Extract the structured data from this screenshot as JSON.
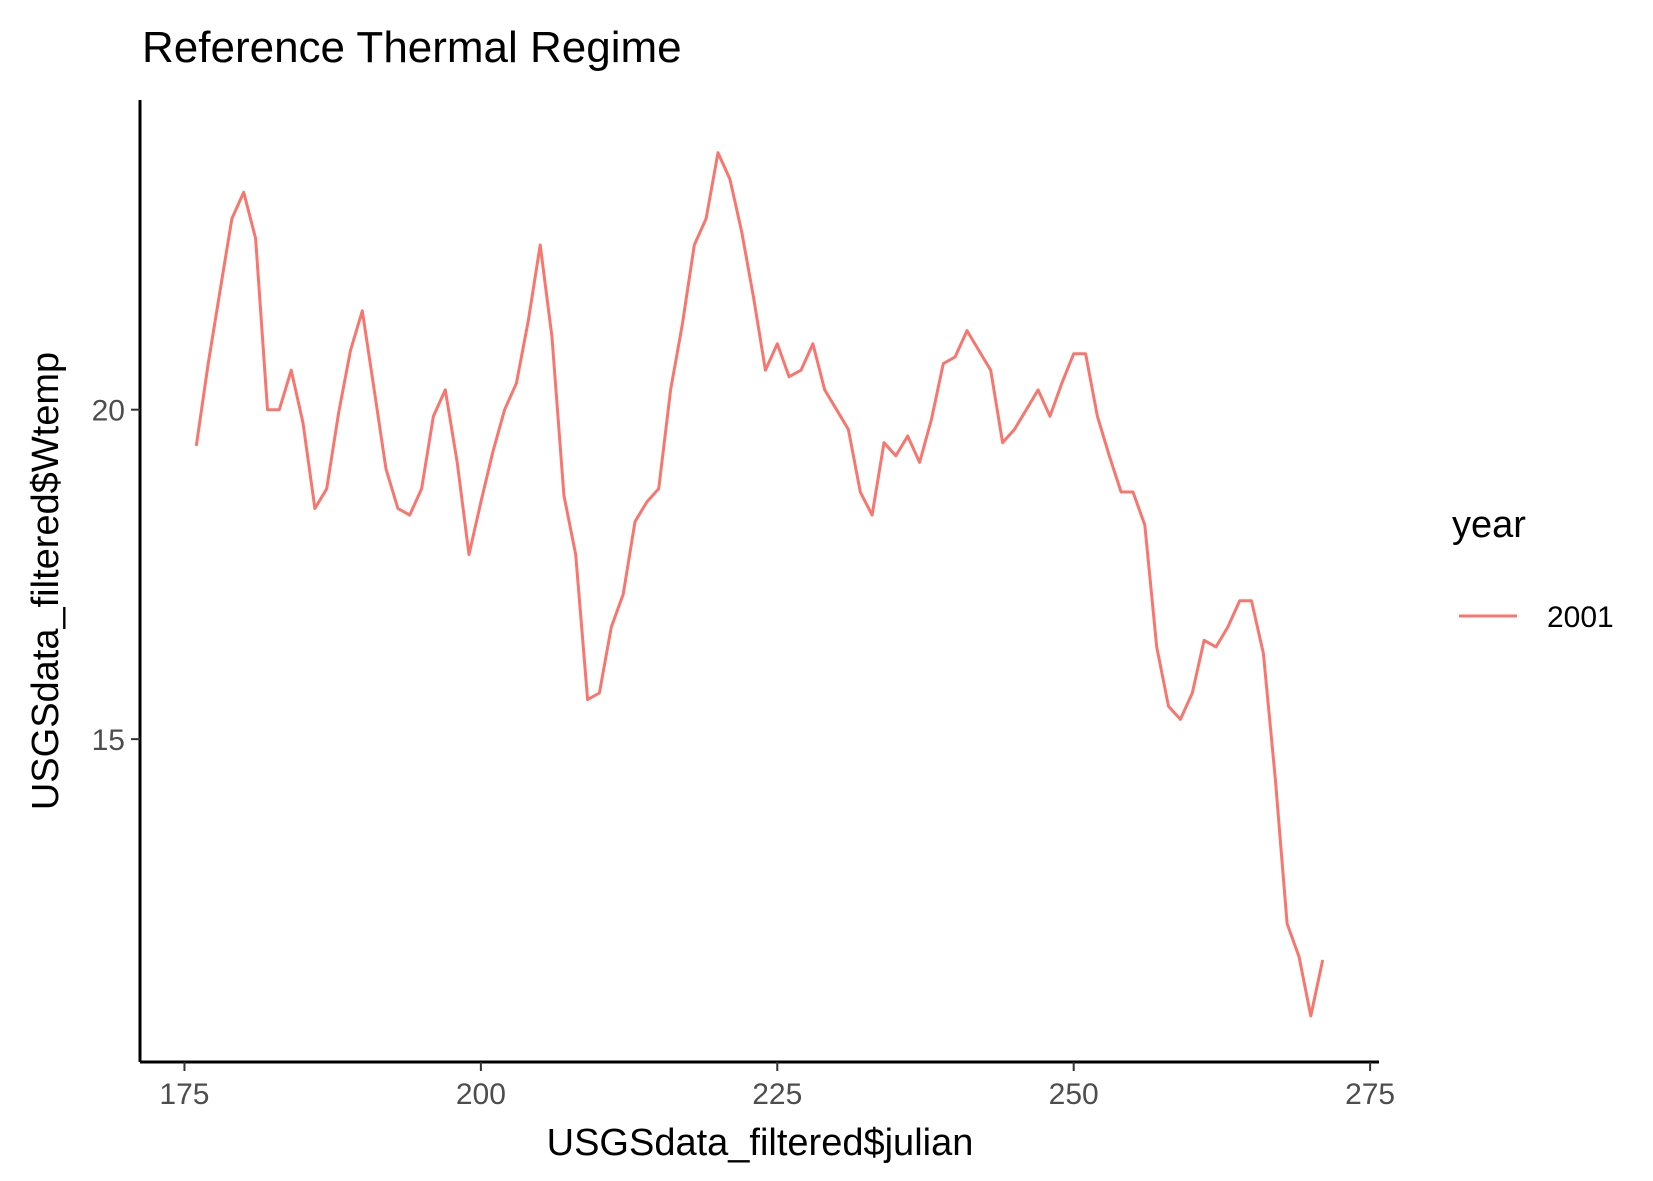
{
  "chart_data": {
    "type": "line",
    "title": "Reference Thermal Regime",
    "xlabel": "USGSdata_filtered$julian",
    "ylabel": "USGSdata_filtered$Wtemp",
    "xlim": [
      171.25,
      275.75
    ],
    "ylim": [
      10.1,
      24.7
    ],
    "x_ticks": [
      175,
      200,
      225,
      250,
      275
    ],
    "y_ticks": [
      15,
      20
    ],
    "grid": false,
    "legend": {
      "title": "year",
      "position": "right"
    },
    "series": [
      {
        "name": "2001",
        "color": "#F8766D",
        "x": [
          176,
          177,
          178,
          179,
          180,
          181,
          182,
          183,
          184,
          185,
          186,
          187,
          188,
          189,
          190,
          191,
          192,
          193,
          194,
          195,
          196,
          197,
          198,
          199,
          200,
          201,
          202,
          203,
          204,
          205,
          206,
          207,
          208,
          209,
          210,
          211,
          212,
          213,
          214,
          215,
          216,
          217,
          218,
          219,
          220,
          221,
          222,
          223,
          224,
          225,
          226,
          227,
          228,
          229,
          230,
          231,
          232,
          233,
          234,
          235,
          236,
          237,
          238,
          239,
          240,
          241,
          242,
          243,
          244,
          245,
          246,
          247,
          248,
          249,
          250,
          251,
          252,
          253,
          254,
          255,
          256,
          257,
          258,
          259,
          260,
          261,
          262,
          263,
          264,
          265,
          266,
          267,
          268,
          269,
          270,
          271
        ],
        "values": [
          19.45,
          20.7,
          21.8,
          22.9,
          23.3,
          22.6,
          20.0,
          20.0,
          20.6,
          19.8,
          18.5,
          18.8,
          19.95,
          20.9,
          21.5,
          20.3,
          19.1,
          18.5,
          18.4,
          18.8,
          19.9,
          20.3,
          19.2,
          17.8,
          18.6,
          19.35,
          20.0,
          20.4,
          21.35,
          22.5,
          21.1,
          18.7,
          17.8,
          15.6,
          15.7,
          16.7,
          17.2,
          18.3,
          18.6,
          18.8,
          20.3,
          21.3,
          22.5,
          22.9,
          23.9,
          23.5,
          22.7,
          21.7,
          20.6,
          21.0,
          20.5,
          20.6,
          21.0,
          20.3,
          20.0,
          19.7,
          18.75,
          18.4,
          19.5,
          19.3,
          19.6,
          19.2,
          19.85,
          20.7,
          20.8,
          21.2,
          20.9,
          20.6,
          19.5,
          19.7,
          20.0,
          20.3,
          19.9,
          20.4,
          20.85,
          20.85,
          19.9,
          19.3,
          18.75,
          18.75,
          18.25,
          16.4,
          15.5,
          15.3,
          15.7,
          16.5,
          16.4,
          16.7,
          17.1,
          17.1,
          16.3,
          14.4,
          12.2,
          11.7,
          10.8,
          11.65
        ]
      }
    ]
  }
}
